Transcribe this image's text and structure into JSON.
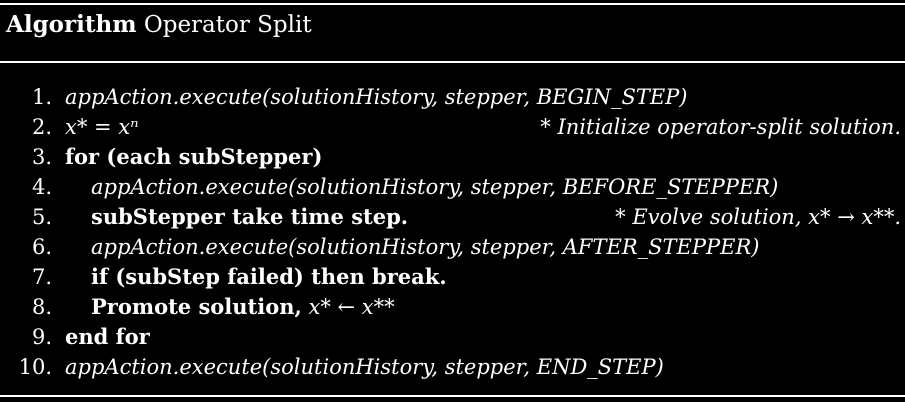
{
  "algorithm": {
    "label": "Algorithm",
    "title": "Operator Split"
  },
  "lines": [
    {
      "num": "1.",
      "text": "appAction.execute(solutionHistory, stepper, BEGIN_STEP)"
    },
    {
      "num": "2.",
      "math": "x* = xⁿ",
      "comment": "* Initialize operator-split solution."
    },
    {
      "num": "3.",
      "text": "for (each subStepper)"
    },
    {
      "num": "4.",
      "text": "appAction.execute(solutionHistory, stepper, BEFORE_STEPPER)"
    },
    {
      "num": "5.",
      "text": "subStepper take time step.",
      "comment": "* Evolve solution, x* → x**."
    },
    {
      "num": "6.",
      "text": "appAction.execute(solutionHistory, stepper, AFTER_STEPPER)"
    },
    {
      "num": "7.",
      "text": "if (subStep failed) then break."
    },
    {
      "num": "8.",
      "text": "Promote solution,",
      "math": "x* ← x**"
    },
    {
      "num": "9.",
      "text": "end for"
    },
    {
      "num": "10.",
      "text": "appAction.execute(solutionHistory, stepper, END_STEP)"
    }
  ]
}
